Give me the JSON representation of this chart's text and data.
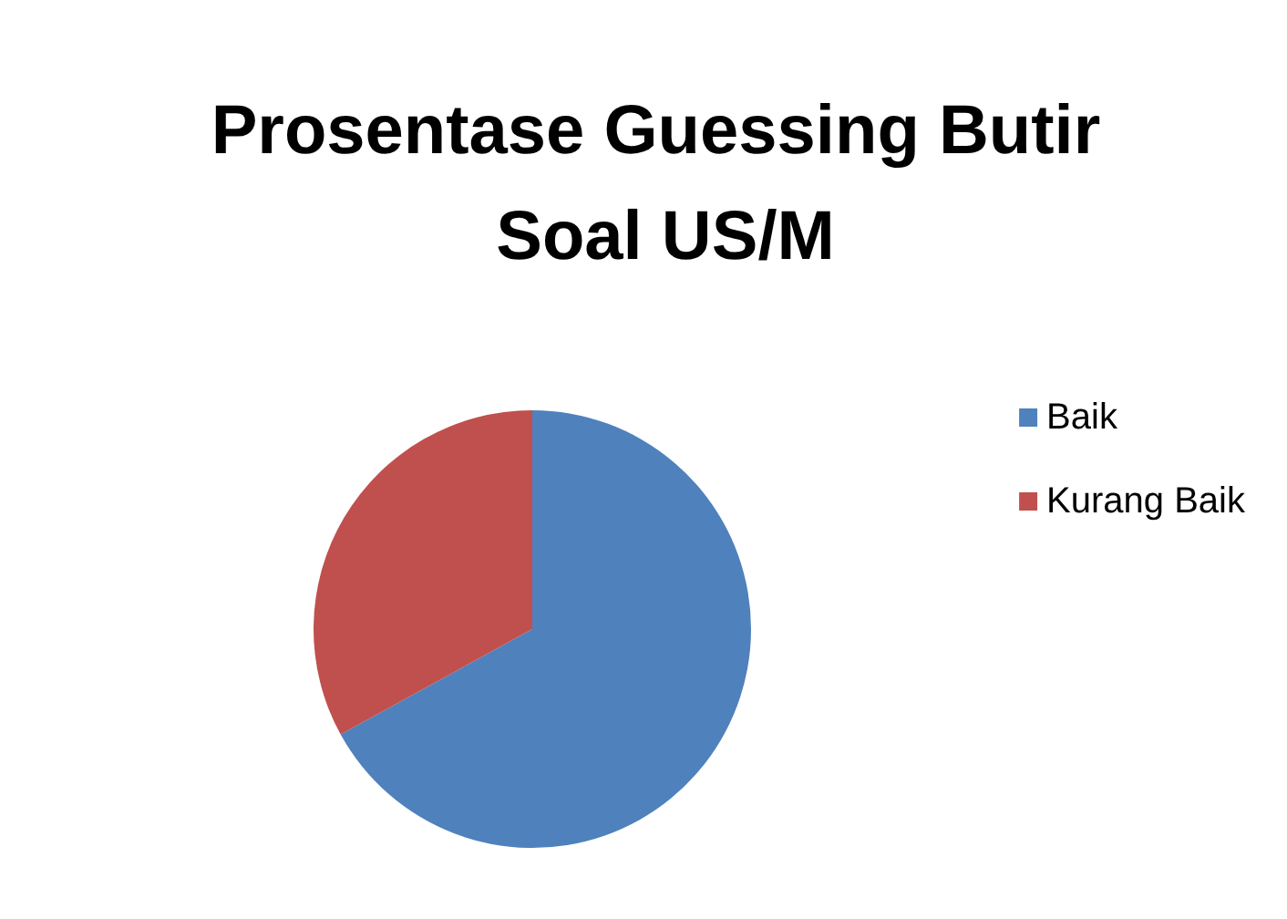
{
  "chart_data": {
    "type": "pie",
    "title": "Prosentase Guessing Butir Soal US/M",
    "categories": [
      "Baik",
      "Kurang Baik"
    ],
    "values": [
      67,
      33
    ],
    "colors": [
      "#4f81bd",
      "#c0504d"
    ],
    "legend": "right"
  }
}
